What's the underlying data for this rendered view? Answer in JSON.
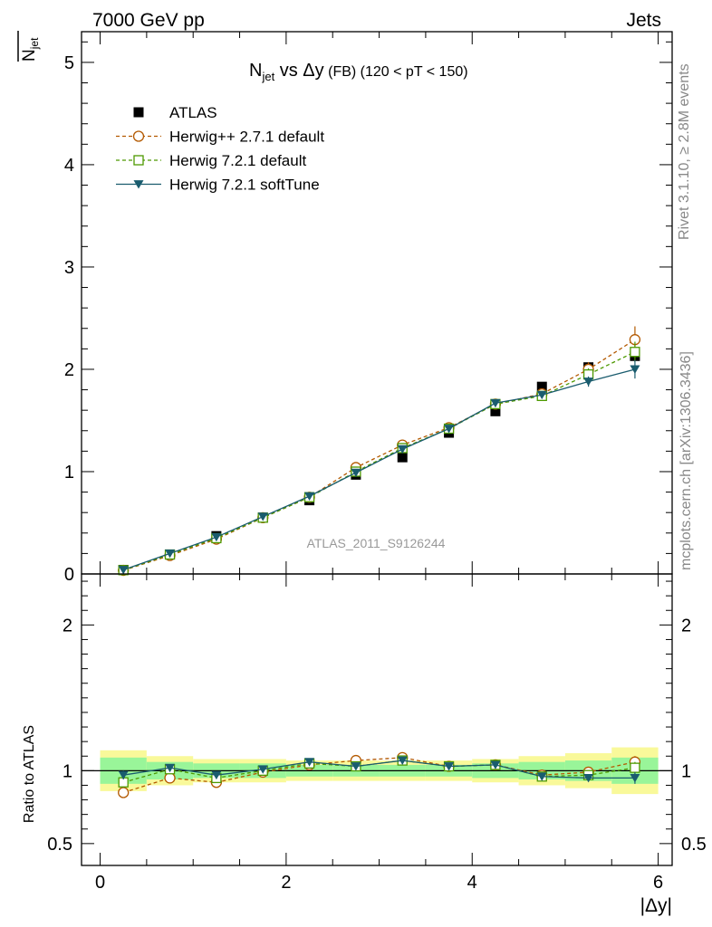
{
  "header": {
    "left": "7000 GeV pp",
    "right": "Jets"
  },
  "side_labels": {
    "rivet": "Rivet 3.1.10, ≥ 2.8M events",
    "mcplots": "mcplots.cern.ch [arXiv:1306.3436]"
  },
  "chart_data": [
    {
      "type": "scatter",
      "panel": "main",
      "title_parts": {
        "main": "N",
        "sub": "jet",
        "vs": " vs Δy",
        "fb": " (FB)",
        "cut": " (120 < pT < 150)"
      },
      "ylabel_parts": {
        "main": "N",
        "sub": "jet"
      },
      "watermark": "ATLAS_2011_S9126244",
      "xlim": [
        -0.2,
        6.15
      ],
      "ylim": [
        0,
        5.3
      ],
      "yticks": [
        {
          "v": 0,
          "label": "0"
        },
        {
          "v": 1,
          "label": "1"
        },
        {
          "v": 2,
          "label": "2"
        },
        {
          "v": 3,
          "label": "3"
        },
        {
          "v": 4,
          "label": "4"
        },
        {
          "v": 5,
          "label": "5"
        }
      ],
      "legend_position": "top-left",
      "x": [
        0.25,
        0.75,
        1.25,
        1.75,
        2.25,
        2.75,
        3.25,
        3.75,
        4.25,
        4.75,
        5.25,
        5.75
      ],
      "series": [
        {
          "name": "ATLAS",
          "marker": "filled-square",
          "color": "#000000",
          "line": "none",
          "values": [
            0.04,
            0.19,
            0.37,
            0.55,
            0.72,
            0.97,
            1.14,
            1.38,
            1.59,
            1.83,
            2.02,
            2.13
          ]
        },
        {
          "name": "Herwig++ 2.7.1 default",
          "marker": "open-circle",
          "color": "#b35900",
          "line": "dashed",
          "values": [
            0.035,
            0.18,
            0.34,
            0.55,
            0.75,
            1.04,
            1.26,
            1.43,
            1.66,
            1.76,
            2.0,
            2.29
          ],
          "errors": [
            0.005,
            0.01,
            0.01,
            0.01,
            0.01,
            0.02,
            0.02,
            0.02,
            0.03,
            0.04,
            0.07,
            0.13
          ]
        },
        {
          "name": "Herwig 7.2.1 default",
          "marker": "open-square",
          "color": "#4d9900",
          "line": "dashed",
          "values": [
            0.037,
            0.19,
            0.35,
            0.55,
            0.75,
            1.0,
            1.23,
            1.42,
            1.66,
            1.74,
            1.95,
            2.17
          ],
          "errors": [
            0.005,
            0.01,
            0.01,
            0.01,
            0.01,
            0.02,
            0.02,
            0.02,
            0.03,
            0.03,
            0.06,
            0.1
          ]
        },
        {
          "name": "Herwig 7.2.1 softTune",
          "marker": "filled-triangle-down",
          "color": "#1a5c6e",
          "line": "solid",
          "values": [
            0.04,
            0.2,
            0.36,
            0.56,
            0.76,
            0.99,
            1.22,
            1.42,
            1.67,
            1.75,
            1.88,
            2.0
          ],
          "errors": [
            0.005,
            0.01,
            0.01,
            0.01,
            0.01,
            0.02,
            0.02,
            0.02,
            0.03,
            0.03,
            0.05,
            0.09
          ]
        }
      ]
    },
    {
      "type": "scatter",
      "panel": "ratio",
      "ylabel": "Ratio to ATLAS",
      "xlabel": "|Δy|",
      "xlim": [
        -0.2,
        6.15
      ],
      "ylim": [
        0.35,
        2.35
      ],
      "xticks": [
        {
          "v": 0,
          "label": "0"
        },
        {
          "v": 2,
          "label": "2"
        },
        {
          "v": 4,
          "label": "4"
        },
        {
          "v": 6,
          "label": "6"
        }
      ],
      "yticks": [
        {
          "v": 0.5,
          "label": "0.5"
        },
        {
          "v": 1,
          "label": "1"
        },
        {
          "v": 2,
          "label": "2"
        }
      ],
      "bands": {
        "x_edges": [
          0,
          0.5,
          1.0,
          1.5,
          2.0,
          2.5,
          3.0,
          3.5,
          4.0,
          4.5,
          5.0,
          5.5,
          6.0
        ],
        "inner_color": "#99f599",
        "outer_color": "#f9f99a",
        "inner": [
          [
            0.91,
            1.09
          ],
          [
            0.94,
            1.06
          ],
          [
            0.95,
            1.05
          ],
          [
            0.95,
            1.05
          ],
          [
            0.96,
            1.04
          ],
          [
            0.96,
            1.04
          ],
          [
            0.96,
            1.04
          ],
          [
            0.96,
            1.04
          ],
          [
            0.95,
            1.05
          ],
          [
            0.94,
            1.06
          ],
          [
            0.93,
            1.07
          ],
          [
            0.91,
            1.09
          ]
        ],
        "outer": [
          [
            0.86,
            1.14
          ],
          [
            0.9,
            1.1
          ],
          [
            0.92,
            1.08
          ],
          [
            0.92,
            1.08
          ],
          [
            0.93,
            1.07
          ],
          [
            0.93,
            1.07
          ],
          [
            0.93,
            1.07
          ],
          [
            0.93,
            1.07
          ],
          [
            0.92,
            1.08
          ],
          [
            0.9,
            1.1
          ],
          [
            0.88,
            1.12
          ],
          [
            0.84,
            1.16
          ]
        ]
      },
      "x": [
        0.25,
        0.75,
        1.25,
        1.75,
        2.25,
        2.75,
        3.25,
        3.75,
        4.25,
        4.75,
        5.25,
        5.75
      ],
      "series": [
        {
          "name": "Herwig++ 2.7.1 default",
          "marker": "open-circle",
          "color": "#b35900",
          "line": "dashed",
          "values": [
            0.85,
            0.95,
            0.92,
            0.99,
            1.04,
            1.07,
            1.09,
            1.03,
            1.04,
            0.97,
            0.99,
            1.06
          ],
          "errors": [
            0.03,
            0.01,
            0.01,
            0.01,
            0.01,
            0.01,
            0.01,
            0.01,
            0.01,
            0.01,
            0.02,
            0.04
          ]
        },
        {
          "name": "Herwig 7.2.1 default",
          "marker": "open-square",
          "color": "#4d9900",
          "line": "dashed",
          "values": [
            0.92,
            1.01,
            0.95,
            1.0,
            1.05,
            1.03,
            1.07,
            1.03,
            1.04,
            0.96,
            0.97,
            1.02
          ],
          "errors": [
            0.03,
            0.01,
            0.01,
            0.01,
            0.01,
            0.01,
            0.01,
            0.01,
            0.01,
            0.01,
            0.02,
            0.04
          ]
        },
        {
          "name": "Herwig 7.2.1 softTune",
          "marker": "filled-triangle-down",
          "color": "#1a5c6e",
          "line": "solid",
          "values": [
            0.97,
            1.02,
            0.97,
            1.01,
            1.06,
            1.03,
            1.07,
            1.03,
            1.04,
            0.96,
            0.95,
            0.95
          ],
          "errors": [
            0.03,
            0.01,
            0.01,
            0.01,
            0.01,
            0.01,
            0.01,
            0.01,
            0.01,
            0.01,
            0.02,
            0.04
          ]
        }
      ]
    }
  ]
}
